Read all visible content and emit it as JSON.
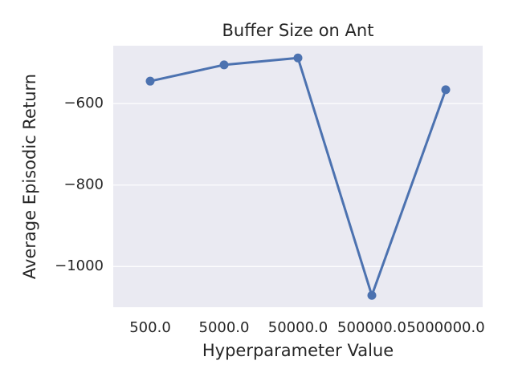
{
  "chart_data": {
    "type": "line",
    "title": "Buffer Size on Ant",
    "xlabel": "Hyperparameter Value",
    "ylabel": "Average Episodic Return",
    "categories": [
      "500.0",
      "5000.0",
      "50000.0",
      "500000.0",
      "5000000.0"
    ],
    "values": [
      -545,
      -505,
      -488,
      -1071,
      -566
    ],
    "color": "#4c72b0",
    "ylim": [
      -1100,
      -458
    ],
    "yticks": [
      {
        "value": -1000,
        "label": "−1000"
      },
      {
        "value": -800,
        "label": "−800"
      },
      {
        "value": -600,
        "label": "−600"
      }
    ],
    "grid": true
  }
}
